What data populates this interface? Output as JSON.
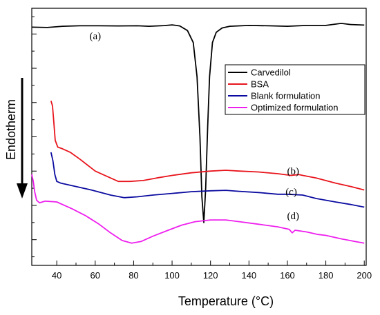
{
  "chart_data": {
    "type": "line",
    "xlabel": "Temperature (°C)",
    "ylabel": "Endotherm",
    "xlim": [
      27,
      201
    ],
    "x_ticks": [
      40,
      60,
      80,
      100,
      120,
      140,
      160,
      180,
      200
    ],
    "y_ticks_labeled": false,
    "grid": false,
    "legend_position": "right",
    "series": [
      {
        "name": "Carvedilol",
        "color": "#000000",
        "annotation": "(a)",
        "points": [
          [
            27,
            0.96
          ],
          [
            35,
            0.962
          ],
          [
            43,
            0.955
          ],
          [
            52,
            0.952
          ],
          [
            62,
            0.952
          ],
          [
            72,
            0.953
          ],
          [
            82,
            0.952
          ],
          [
            88,
            0.955
          ],
          [
            96,
            0.951
          ],
          [
            100,
            0.947
          ],
          [
            104,
            0.953
          ],
          [
            108,
            0.98
          ],
          [
            111,
            1.05
          ],
          [
            113,
            1.25
          ],
          [
            114.5,
            1.6
          ],
          [
            115.5,
            1.95
          ],
          [
            116.5,
            2.1
          ],
          [
            117.5,
            1.9
          ],
          [
            118.5,
            1.55
          ],
          [
            119.5,
            1.25
          ],
          [
            121,
            1.05
          ],
          [
            123,
            0.99
          ],
          [
            126,
            0.965
          ],
          [
            130,
            0.955
          ],
          [
            140,
            0.95
          ],
          [
            150,
            0.952
          ],
          [
            160,
            0.955
          ],
          [
            170,
            0.95
          ],
          [
            180,
            0.95
          ],
          [
            188,
            0.938
          ],
          [
            193,
            0.945
          ],
          [
            200,
            0.948
          ]
        ]
      },
      {
        "name": "BSA",
        "color": "#e8141c",
        "annotation": "(b)",
        "points": [
          [
            37,
            1.39
          ],
          [
            37.8,
            1.42
          ],
          [
            38.5,
            1.52
          ],
          [
            39.2,
            1.62
          ],
          [
            40.5,
            1.66
          ],
          [
            43,
            1.67
          ],
          [
            47,
            1.69
          ],
          [
            52,
            1.73
          ],
          [
            60,
            1.8
          ],
          [
            68,
            1.84
          ],
          [
            72,
            1.86
          ],
          [
            78,
            1.86
          ],
          [
            85,
            1.855
          ],
          [
            92,
            1.84
          ],
          [
            100,
            1.825
          ],
          [
            110,
            1.81
          ],
          [
            120,
            1.8
          ],
          [
            128,
            1.795
          ],
          [
            135,
            1.8
          ],
          [
            145,
            1.805
          ],
          [
            155,
            1.815
          ],
          [
            162,
            1.825
          ],
          [
            166,
            1.82
          ],
          [
            168,
            1.825
          ],
          [
            175,
            1.84
          ],
          [
            185,
            1.87
          ],
          [
            193,
            1.89
          ],
          [
            200,
            1.91
          ]
        ]
      },
      {
        "name": "Blank formulation",
        "color": "#0a0aa0",
        "annotation": "(c)",
        "points": [
          [
            37,
            1.69
          ],
          [
            38,
            1.74
          ],
          [
            39,
            1.82
          ],
          [
            40,
            1.86
          ],
          [
            42,
            1.87
          ],
          [
            48,
            1.885
          ],
          [
            58,
            1.91
          ],
          [
            68,
            1.94
          ],
          [
            75,
            1.955
          ],
          [
            82,
            1.95
          ],
          [
            90,
            1.94
          ],
          [
            100,
            1.93
          ],
          [
            110,
            1.92
          ],
          [
            120,
            1.915
          ],
          [
            128,
            1.912
          ],
          [
            135,
            1.918
          ],
          [
            145,
            1.925
          ],
          [
            155,
            1.935
          ],
          [
            160,
            1.935
          ],
          [
            168,
            1.94
          ],
          [
            175,
            1.96
          ],
          [
            185,
            1.98
          ],
          [
            193,
            1.995
          ],
          [
            200,
            2.01
          ]
        ]
      },
      {
        "name": "Optimized formulation",
        "color": "#ee1eee",
        "annotation": "(d)",
        "points": [
          [
            27,
            1.82
          ],
          [
            27.8,
            1.86
          ],
          [
            28.5,
            1.92
          ],
          [
            29.5,
            1.97
          ],
          [
            31,
            1.985
          ],
          [
            34,
            1.975
          ],
          [
            40,
            1.98
          ],
          [
            48,
            2.02
          ],
          [
            55,
            2.06
          ],
          [
            62,
            2.11
          ],
          [
            68,
            2.16
          ],
          [
            74,
            2.205
          ],
          [
            79,
            2.22
          ],
          [
            84,
            2.21
          ],
          [
            90,
            2.18
          ],
          [
            98,
            2.145
          ],
          [
            105,
            2.115
          ],
          [
            112,
            2.095
          ],
          [
            120,
            2.085
          ],
          [
            128,
            2.085
          ],
          [
            135,
            2.095
          ],
          [
            145,
            2.11
          ],
          [
            155,
            2.125
          ],
          [
            161,
            2.14
          ],
          [
            162.5,
            2.16
          ],
          [
            164,
            2.145
          ],
          [
            170,
            2.155
          ],
          [
            176,
            2.17
          ],
          [
            180,
            2.175
          ],
          [
            188,
            2.195
          ],
          [
            195,
            2.21
          ],
          [
            200,
            2.22
          ]
        ]
      }
    ]
  }
}
